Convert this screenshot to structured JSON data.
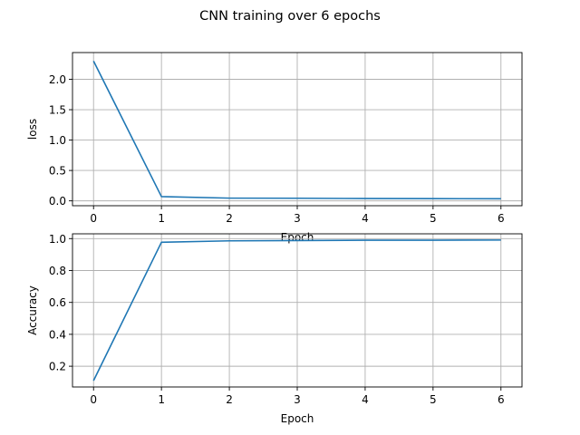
{
  "suptitle": "CNN training over 6 epochs",
  "chart_data": [
    {
      "type": "line",
      "xlabel": "Epoch",
      "ylabel": "loss",
      "x": [
        0,
        1,
        2,
        3,
        4,
        5,
        6
      ],
      "series": [
        {
          "values": [
            2.3,
            0.07,
            0.045,
            0.043,
            0.038,
            0.036,
            0.035
          ],
          "color": "#1f77b4"
        }
      ],
      "xlim": [
        -0.31,
        6.31
      ],
      "ylim": [
        -0.08,
        2.44
      ],
      "xticks": [
        0,
        1,
        2,
        3,
        4,
        5,
        6
      ],
      "yticks": [
        0.0,
        0.5,
        1.0,
        1.5,
        2.0
      ],
      "ytick_labels": [
        "0.0",
        "0.5",
        "1.0",
        "1.5",
        "2.0"
      ],
      "grid": true
    },
    {
      "type": "line",
      "xlabel": "Epoch",
      "ylabel": "Accuracy",
      "x": [
        0,
        1,
        2,
        3,
        4,
        5,
        6
      ],
      "series": [
        {
          "values": [
            0.11,
            0.977,
            0.986,
            0.988,
            0.99,
            0.99,
            0.991
          ],
          "color": "#1f77b4"
        }
      ],
      "xlim": [
        -0.31,
        6.31
      ],
      "ylim": [
        0.07,
        1.03
      ],
      "xticks": [
        0,
        1,
        2,
        3,
        4,
        5,
        6
      ],
      "yticks": [
        0.2,
        0.4,
        0.6,
        0.8,
        1.0
      ],
      "ytick_labels": [
        "0.2",
        "0.4",
        "0.6",
        "0.8",
        "1.0"
      ],
      "grid": true
    }
  ]
}
